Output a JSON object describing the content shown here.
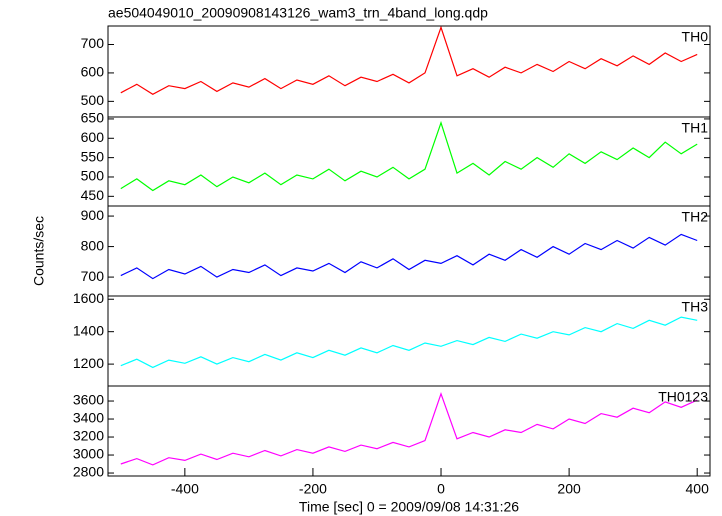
{
  "chart_data": [
    {
      "type": "line",
      "title": "ae504049010_20090908143126_wam3_trn_4band_long.qdp",
      "x": [
        -500,
        -475,
        -450,
        -425,
        -400,
        -375,
        -350,
        -325,
        -300,
        -275,
        -250,
        -225,
        -200,
        -175,
        -150,
        -125,
        -100,
        -75,
        -50,
        -25,
        0,
        25,
        50,
        75,
        100,
        125,
        150,
        175,
        200,
        225,
        250,
        275,
        300,
        325,
        350,
        375,
        400
      ],
      "series": [
        {
          "name": "TH0",
          "color": "#ff0000",
          "values": [
            530,
            560,
            525,
            555,
            545,
            570,
            535,
            565,
            550,
            580,
            545,
            575,
            560,
            590,
            555,
            585,
            570,
            595,
            565,
            600,
            760,
            590,
            615,
            585,
            620,
            600,
            630,
            605,
            640,
            615,
            650,
            625,
            660,
            630,
            670,
            640,
            665
          ]
        }
      ],
      "xlim": [
        -520,
        420
      ],
      "ylim": [
        445,
        765
      ],
      "yticks": [
        500,
        600,
        700
      ]
    },
    {
      "type": "line",
      "x": [
        -500,
        -475,
        -450,
        -425,
        -400,
        -375,
        -350,
        -325,
        -300,
        -275,
        -250,
        -225,
        -200,
        -175,
        -150,
        -125,
        -100,
        -75,
        -50,
        -25,
        0,
        25,
        50,
        75,
        100,
        125,
        150,
        175,
        200,
        225,
        250,
        275,
        300,
        325,
        350,
        375,
        400
      ],
      "series": [
        {
          "name": "TH1",
          "color": "#00ff00",
          "values": [
            470,
            495,
            465,
            490,
            480,
            505,
            475,
            500,
            485,
            510,
            480,
            505,
            495,
            520,
            490,
            515,
            500,
            525,
            495,
            520,
            640,
            510,
            535,
            505,
            540,
            520,
            550,
            525,
            560,
            535,
            565,
            545,
            575,
            550,
            590,
            560,
            585
          ]
        }
      ],
      "xlim": [
        -520,
        420
      ],
      "ylim": [
        425,
        655
      ],
      "yticks": [
        450,
        500,
        550,
        600,
        650
      ]
    },
    {
      "type": "line",
      "ylabel": "Counts/sec",
      "x": [
        -500,
        -475,
        -450,
        -425,
        -400,
        -375,
        -350,
        -325,
        -300,
        -275,
        -250,
        -225,
        -200,
        -175,
        -150,
        -125,
        -100,
        -75,
        -50,
        -25,
        0,
        25,
        50,
        75,
        100,
        125,
        150,
        175,
        200,
        225,
        250,
        275,
        300,
        325,
        350,
        375,
        400
      ],
      "series": [
        {
          "name": "TH2",
          "color": "#0000ff",
          "values": [
            705,
            730,
            695,
            725,
            710,
            735,
            700,
            725,
            715,
            740,
            705,
            730,
            720,
            745,
            715,
            750,
            730,
            760,
            725,
            755,
            745,
            770,
            740,
            775,
            755,
            790,
            765,
            800,
            775,
            810,
            790,
            820,
            795,
            830,
            805,
            840,
            820
          ]
        }
      ],
      "xlim": [
        -520,
        420
      ],
      "ylim": [
        638,
        933
      ],
      "yticks": [
        700,
        800,
        900
      ]
    },
    {
      "type": "line",
      "x": [
        -500,
        -475,
        -450,
        -425,
        -400,
        -375,
        -350,
        -325,
        -300,
        -275,
        -250,
        -225,
        -200,
        -175,
        -150,
        -125,
        -100,
        -75,
        -50,
        -25,
        0,
        25,
        50,
        75,
        100,
        125,
        150,
        175,
        200,
        225,
        250,
        275,
        300,
        325,
        350,
        375,
        400
      ],
      "series": [
        {
          "name": "TH3",
          "color": "#00ffff",
          "values": [
            1190,
            1230,
            1180,
            1225,
            1205,
            1245,
            1200,
            1240,
            1215,
            1260,
            1225,
            1270,
            1240,
            1285,
            1255,
            1300,
            1270,
            1315,
            1285,
            1330,
            1310,
            1345,
            1320,
            1365,
            1340,
            1385,
            1360,
            1400,
            1380,
            1425,
            1400,
            1450,
            1420,
            1470,
            1440,
            1490,
            1470
          ]
        }
      ],
      "xlim": [
        -520,
        420
      ],
      "ylim": [
        1065,
        1620
      ],
      "yticks": [
        1200,
        1400,
        1600
      ]
    },
    {
      "type": "line",
      "xlabel": "Time [sec] 0 = 2009/09/08 14:31:26",
      "x": [
        -500,
        -475,
        -450,
        -425,
        -400,
        -375,
        -350,
        -325,
        -300,
        -275,
        -250,
        -225,
        -200,
        -175,
        -150,
        -125,
        -100,
        -75,
        -50,
        -25,
        0,
        25,
        50,
        75,
        100,
        125,
        150,
        175,
        200,
        225,
        250,
        275,
        300,
        325,
        350,
        375,
        400
      ],
      "series": [
        {
          "name": "TH0123",
          "color": "#ff00ff",
          "values": [
            2900,
            2960,
            2890,
            2970,
            2940,
            3010,
            2950,
            3020,
            2980,
            3050,
            2990,
            3060,
            3020,
            3090,
            3040,
            3110,
            3070,
            3140,
            3090,
            3160,
            3680,
            3180,
            3250,
            3200,
            3280,
            3250,
            3340,
            3290,
            3400,
            3350,
            3460,
            3420,
            3520,
            3470,
            3590,
            3530,
            3610
          ]
        }
      ],
      "xlim": [
        -520,
        420
      ],
      "ylim": [
        2767,
        3767
      ],
      "yticks": [
        2800,
        3000,
        3200,
        3400,
        3600
      ],
      "xticks": [
        -400,
        -200,
        0,
        200,
        400
      ]
    }
  ]
}
